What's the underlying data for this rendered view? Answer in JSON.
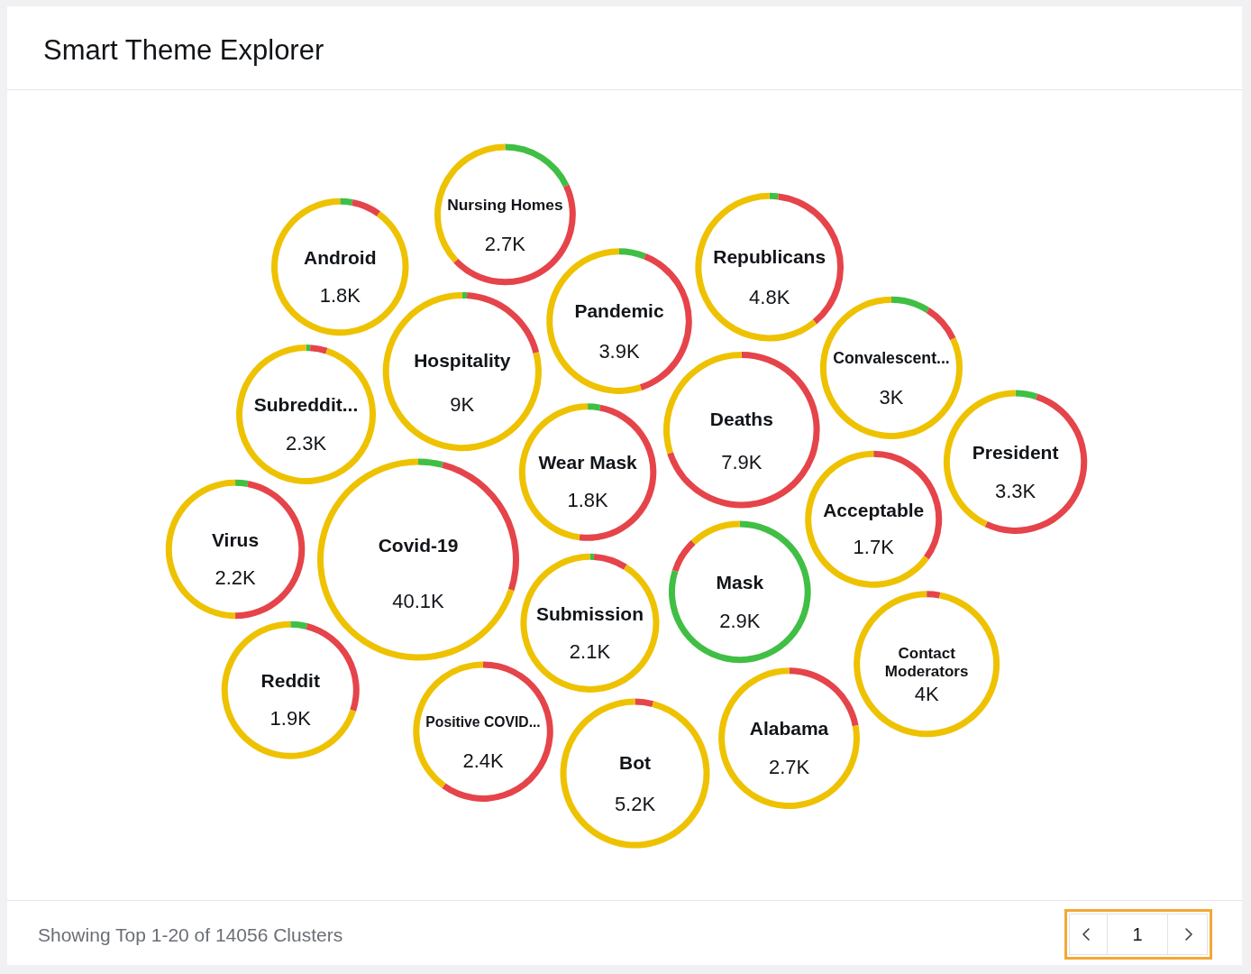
{
  "chart_data": [
    {
      "type": "other",
      "title": "Smart Theme Explorer",
      "categories": [
        "President",
        "Positive COVID...",
        "Republicans",
        "Mask",
        "Hospitality",
        "Deaths",
        "Submission",
        "Android",
        "Wear Mask",
        "Virus",
        "Pandemic",
        "Alabama",
        "Subreddit...",
        "Acceptable",
        "Reddit",
        "Nursing Homes",
        "Contact Moderators",
        "Covid-19",
        "Convalescent...",
        "Bot"
      ],
      "values": [
        3300,
        2400,
        4800,
        2900,
        9000,
        7900,
        2100,
        1800,
        1800,
        2200,
        3900,
        2700,
        2300,
        1700,
        1900,
        2700,
        4000,
        40100,
        3000,
        5200
      ],
      "value_labels": [
        "3.3K",
        "2.4K",
        "4.8K",
        "2.9K",
        "9K",
        "7.9K",
        "2.1K",
        "1.8K",
        "1.8K",
        "2.2K",
        "3.9K",
        "2.7K",
        "2.3K",
        "1.7K",
        "1.9K",
        "2.7K",
        "4K",
        "40.1K",
        "3K",
        "5.2K"
      ],
      "annotations": [
        "Showing Top 1-20 of 14056 Clusters",
        "1"
      ]
    },
    {
      "type": "donut",
      "categories": [
        null,
        null,
        null
      ],
      "colors": [
        "#40bf44",
        "#e5444a",
        "#eec200"
      ],
      "series": [
        {
          "values": [
            5,
            52,
            43
          ]
        },
        {
          "values": [
            0,
            60,
            40
          ]
        },
        {
          "values": [
            2,
            37,
            61
          ]
        },
        {
          "values": [
            80,
            8,
            12
          ]
        },
        {
          "values": [
            1,
            20,
            79
          ]
        },
        {
          "values": [
            0,
            70,
            30
          ]
        },
        {
          "values": [
            1,
            8,
            91
          ]
        },
        {
          "values": [
            3,
            7,
            90
          ]
        },
        {
          "values": [
            3,
            49,
            48
          ]
        },
        {
          "values": [
            3,
            47,
            50
          ]
        },
        {
          "values": [
            6,
            39,
            55
          ]
        },
        {
          "values": [
            0,
            22,
            78
          ]
        },
        {
          "values": [
            1,
            4,
            95
          ]
        },
        {
          "values": [
            0,
            35,
            65
          ]
        },
        {
          "values": [
            4,
            26,
            70
          ]
        },
        {
          "values": [
            18,
            45,
            37
          ]
        },
        {
          "values": [
            0,
            3,
            97
          ]
        },
        {
          "values": [
            4,
            26,
            70
          ]
        },
        {
          "values": [
            9,
            9,
            82
          ]
        },
        {
          "values": [
            0,
            4,
            96
          ]
        }
      ]
    }
  ]
}
